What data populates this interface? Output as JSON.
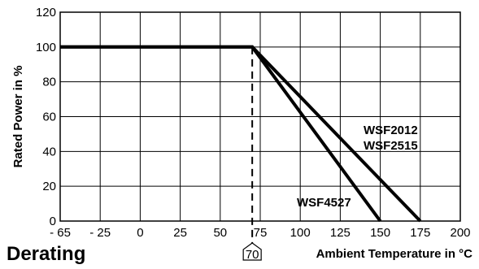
{
  "chart_data": {
    "type": "line",
    "title": "Derating",
    "xlabel": "Ambient Temperature in °C",
    "ylabel": "Rated Power in %",
    "x_ticks": [
      -65,
      -25,
      0,
      25,
      50,
      75,
      100,
      125,
      150,
      175,
      200
    ],
    "x_tick_labels": [
      "- 65",
      "- 25",
      "0",
      "25",
      "50",
      "75",
      "100",
      "125",
      "150",
      "175",
      "200"
    ],
    "y_ticks": [
      0,
      20,
      40,
      60,
      80,
      100,
      120
    ],
    "y_tick_labels": [
      "0",
      "20",
      "40",
      "60",
      "80",
      "100",
      "120"
    ],
    "grid": true,
    "series": [
      {
        "name": "WSF2012\nWSF2515",
        "x": [
          -65,
          70,
          175
        ],
        "y": [
          100,
          100,
          0
        ]
      },
      {
        "name": "WSF4527",
        "x": [
          -65,
          70,
          150
        ],
        "y": [
          100,
          100,
          0
        ]
      }
    ],
    "annotations": [
      {
        "text": "WSF2012",
        "series": 0
      },
      {
        "text": "WSF2515",
        "series": 0
      },
      {
        "text": "WSF4527",
        "series": 1
      }
    ],
    "marker": {
      "x": 70,
      "label": "70",
      "style": "dashed"
    }
  },
  "colors": {
    "line": "#000000",
    "grid": "#000000",
    "background": "#ffffff"
  }
}
